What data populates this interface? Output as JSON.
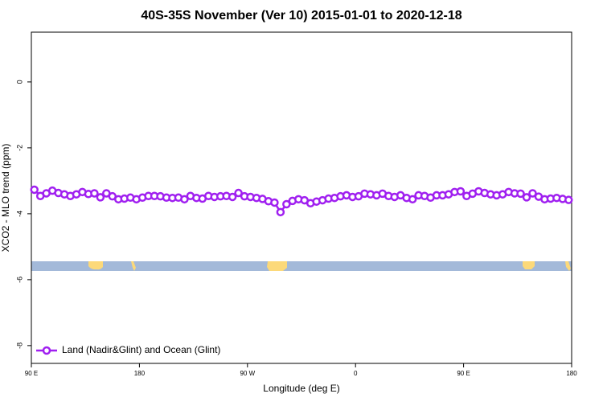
{
  "chart_data": {
    "type": "line",
    "title": "40S-35S November (Ver 10)   2015-01-01 to 2020-12-18",
    "x_label": "Longitude (deg E)",
    "y_label": "XCO2 - MLO trend (ppm)",
    "x": [
      92.5,
      97.5,
      102.5,
      107.5,
      112.5,
      117.5,
      122.5,
      127.5,
      132.5,
      137.5,
      142.5,
      147.5,
      152.5,
      157.5,
      162.5,
      167.5,
      172.5,
      177.5,
      182.5,
      187.5,
      192.5,
      197.5,
      202.5,
      207.5,
      212.5,
      217.5,
      222.5,
      227.5,
      232.5,
      237.5,
      242.5,
      247.5,
      252.5,
      257.5,
      262.5,
      267.5,
      272.5,
      277.5,
      282.5,
      287.5,
      292.5,
      297.5,
      302.5,
      307.5,
      312.5,
      317.5,
      322.5,
      327.5,
      332.5,
      337.5,
      342.5,
      347.5,
      352.5,
      357.5,
      362.5,
      367.5,
      372.5,
      377.5,
      382.5,
      387.5,
      392.5,
      397.5,
      402.5,
      407.5,
      412.5,
      417.5,
      422.5,
      427.5,
      432.5,
      437.5,
      442.5,
      447.5,
      452.5,
      457.5,
      462.5,
      467.5,
      472.5,
      477.5,
      482.5,
      487.5,
      492.5,
      497.5,
      502.5,
      507.5,
      512.5,
      517.5,
      522.5,
      527.5,
      532.5,
      537.5
    ],
    "series": [
      {
        "name": "Land (Nadir&Glint) and Ocean (Glint)",
        "color": "#a020f0",
        "values": [
          -3.27,
          -3.46,
          -3.38,
          -3.3,
          -3.37,
          -3.41,
          -3.46,
          -3.41,
          -3.34,
          -3.4,
          -3.38,
          -3.5,
          -3.38,
          -3.47,
          -3.56,
          -3.54,
          -3.51,
          -3.56,
          -3.51,
          -3.46,
          -3.46,
          -3.47,
          -3.51,
          -3.52,
          -3.51,
          -3.56,
          -3.46,
          -3.52,
          -3.54,
          -3.46,
          -3.49,
          -3.47,
          -3.46,
          -3.49,
          -3.37,
          -3.47,
          -3.49,
          -3.52,
          -3.55,
          -3.62,
          -3.66,
          -3.95,
          -3.71,
          -3.61,
          -3.56,
          -3.59,
          -3.68,
          -3.63,
          -3.59,
          -3.54,
          -3.52,
          -3.47,
          -3.44,
          -3.49,
          -3.47,
          -3.39,
          -3.41,
          -3.44,
          -3.39,
          -3.46,
          -3.49,
          -3.44,
          -3.52,
          -3.56,
          -3.44,
          -3.46,
          -3.51,
          -3.44,
          -3.44,
          -3.41,
          -3.34,
          -3.32,
          -3.46,
          -3.39,
          -3.32,
          -3.37,
          -3.41,
          -3.44,
          -3.41,
          -3.34,
          -3.38,
          -3.39,
          -3.5,
          -3.38,
          -3.48,
          -3.56,
          -3.54,
          -3.52,
          -3.55,
          -3.58
        ]
      }
    ],
    "xlim": [
      90,
      540
    ],
    "xticks": [
      {
        "value": 90,
        "label": "90 E"
      },
      180,
      {
        "value": 270,
        "label": "90 W"
      },
      {
        "value": 360,
        "label": "0"
      },
      {
        "value": 450,
        "label": "90 E"
      },
      {
        "value": 540,
        "label": "180"
      }
    ],
    "ylim": [
      -8.54,
      1.51
    ],
    "yticks": [
      0,
      -2,
      -4,
      -6,
      -8
    ],
    "legend": "bottomleft"
  }
}
